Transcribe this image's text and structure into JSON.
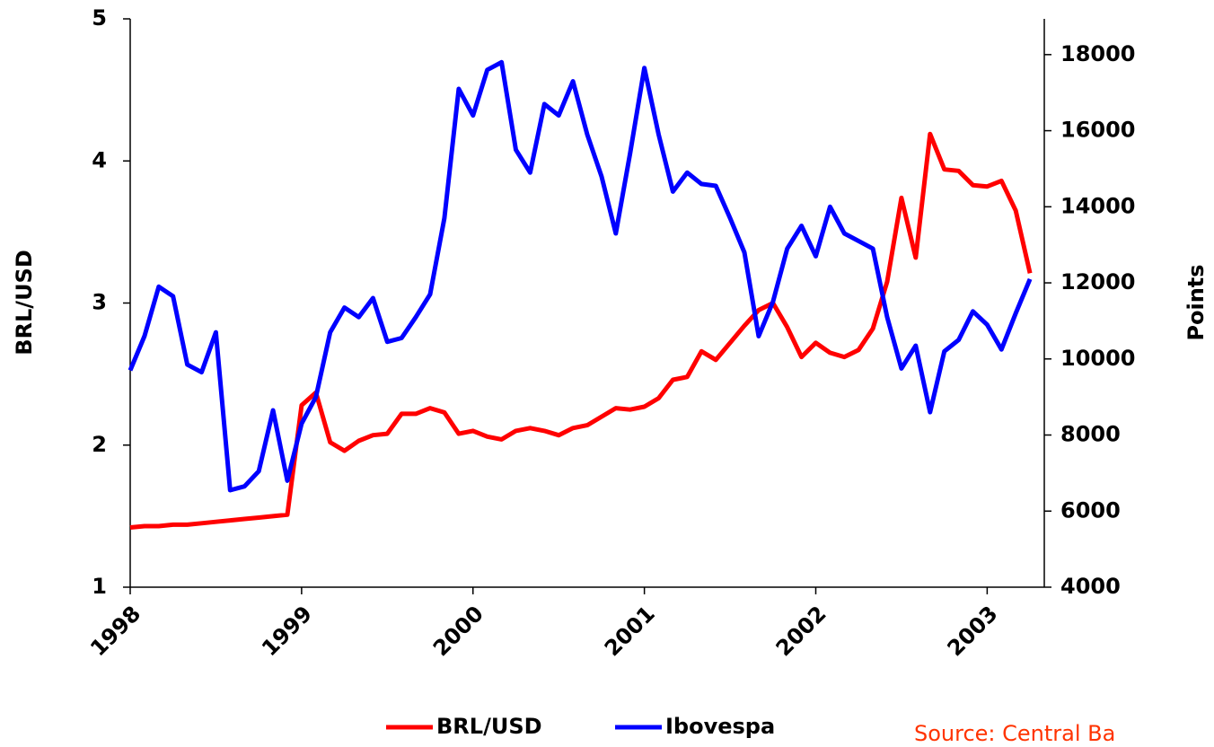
{
  "chart_data": {
    "type": "line",
    "x": [
      1998,
      1998.0833,
      1998.1667,
      1998.25,
      1998.3333,
      1998.4167,
      1998.5,
      1998.5833,
      1998.6667,
      1998.75,
      1998.8333,
      1998.9167,
      1999,
      1999.0833,
      1999.1667,
      1999.25,
      1999.3333,
      1999.4167,
      1999.5,
      1999.5833,
      1999.6667,
      1999.75,
      1999.8333,
      1999.9167,
      2000,
      2000.0833,
      2000.1667,
      2000.25,
      2000.3333,
      2000.4167,
      2000.5,
      2000.5833,
      2000.6667,
      2000.75,
      2000.8333,
      2000.9167,
      2001,
      2001.0833,
      2001.1667,
      2001.25,
      2001.3333,
      2001.4167,
      2001.5,
      2001.5833,
      2001.6667,
      2001.75,
      2001.8333,
      2001.9167,
      2002,
      2002.0833,
      2002.1667,
      2002.25,
      2002.3333,
      2002.4167,
      2002.5,
      2002.5833,
      2002.6667,
      2002.75,
      2002.8333,
      2002.9167,
      2003,
      2003.0833,
      2003.1667,
      2003.25
    ],
    "series": [
      {
        "name": "BRL/USD",
        "color": "#ff0000",
        "axis": "y",
        "values": [
          1.42,
          1.43,
          1.43,
          1.44,
          1.44,
          1.45,
          1.46,
          1.47,
          1.48,
          1.49,
          1.5,
          1.51,
          2.28,
          2.37,
          2.02,
          1.96,
          2.03,
          2.07,
          2.08,
          2.22,
          2.22,
          2.26,
          2.23,
          2.08,
          2.1,
          2.06,
          2.04,
          2.1,
          2.12,
          2.1,
          2.07,
          2.12,
          2.14,
          2.2,
          2.26,
          2.25,
          2.27,
          2.33,
          2.46,
          2.48,
          2.66,
          2.6,
          2.72,
          2.84,
          2.95,
          3.0,
          2.83,
          2.62,
          2.72,
          2.65,
          2.62,
          2.67,
          2.82,
          3.15,
          3.74,
          3.32,
          4.19,
          3.94,
          3.93,
          3.83,
          3.82,
          3.86,
          3.65,
          3.21
        ]
      },
      {
        "name": "Ibovespa",
        "color": "#0000ff",
        "axis": "y2",
        "values": [
          9700,
          10600,
          11900,
          11650,
          9850,
          9650,
          10700,
          6550,
          6650,
          7050,
          8650,
          6800,
          8300,
          9000,
          10700,
          11350,
          11100,
          11600,
          10450,
          10550,
          11100,
          11700,
          13700,
          17100,
          16400,
          17600,
          17800,
          15500,
          14900,
          16700,
          16400,
          17300,
          15900,
          14800,
          13300,
          15400,
          17650,
          15900,
          14400,
          14900,
          14600,
          14550,
          13700,
          12800,
          10600,
          11500,
          12900,
          13500,
          12700,
          14000,
          13300,
          13100,
          12900,
          11100,
          9750,
          10350,
          8600,
          10200,
          10500,
          11250,
          10900,
          10250,
          11200,
          12100
        ]
      }
    ],
    "ylabel": "BRL/USD",
    "y2label": "Points",
    "xlim": [
      1998,
      2003.3333
    ],
    "xticks": [
      1998,
      1999,
      2000,
      2001,
      2002,
      2003
    ],
    "ylim": [
      1,
      5
    ],
    "yticks": [
      1,
      2,
      3,
      4,
      5
    ],
    "y2lim": [
      4000,
      18940
    ],
    "y2ticks": [
      4000,
      6000,
      8000,
      10000,
      12000,
      14000,
      16000,
      18000
    ],
    "legend": "bottom",
    "source": "Source: Central Ba"
  }
}
